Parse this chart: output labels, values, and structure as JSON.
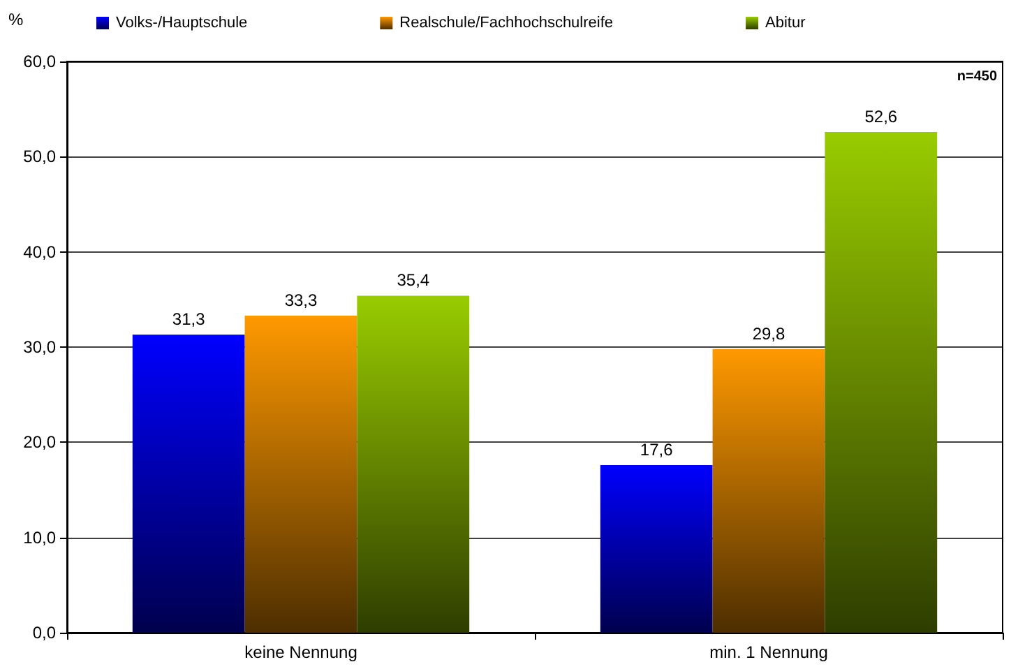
{
  "chart_data": {
    "type": "bar",
    "ylabel": "%",
    "categories": [
      "keine Nennung",
      "min. 1 Nennung"
    ],
    "series": [
      {
        "name": "Volks-/Hauptschule",
        "color": "#0000ff",
        "values": [
          31.3,
          17.6
        ],
        "value_labels": [
          "31,3",
          "17,6"
        ]
      },
      {
        "name": "Realschule/Fachhochschulreife",
        "color": "#ff9900",
        "values": [
          33.3,
          29.8
        ],
        "value_labels": [
          "33,3",
          "29,8"
        ]
      },
      {
        "name": "Abitur",
        "color": "#99cc00",
        "values": [
          35.4,
          52.6
        ],
        "value_labels": [
          "35,4",
          "52,6"
        ]
      }
    ],
    "ylim": [
      0,
      60
    ],
    "yticks": [
      {
        "value": 0,
        "label": "0,0"
      },
      {
        "value": 10,
        "label": "10,0"
      },
      {
        "value": 20,
        "label": "20,0"
      },
      {
        "value": 30,
        "label": "30,0"
      },
      {
        "value": 40,
        "label": "40,0"
      },
      {
        "value": 50,
        "label": "50,0"
      },
      {
        "value": 60,
        "label": "60,0"
      }
    ],
    "grid": "y",
    "legend": "top",
    "annotations": [
      "n=450"
    ]
  }
}
